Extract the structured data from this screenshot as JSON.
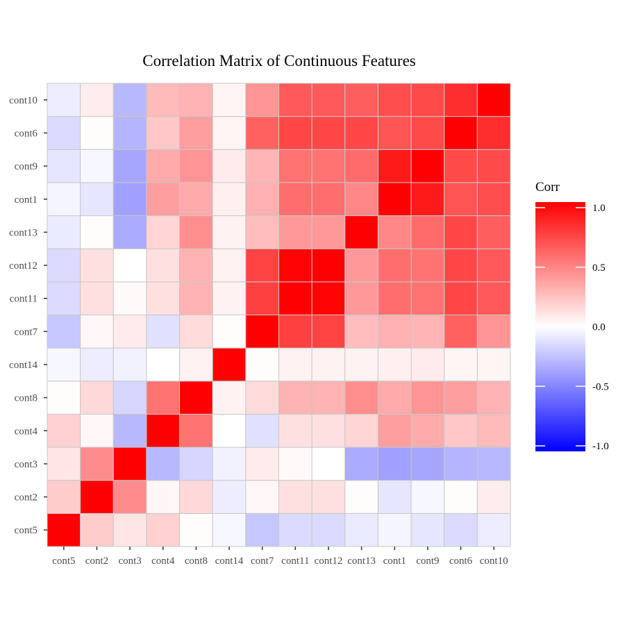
{
  "chart_data": {
    "type": "heatmap",
    "title": "Correlation Matrix of Continuous Features",
    "xlabel": "",
    "ylabel": "",
    "x_categories": [
      "cont5",
      "cont2",
      "cont3",
      "cont4",
      "cont8",
      "cont14",
      "cont7",
      "cont11",
      "cont12",
      "cont13",
      "cont1",
      "cont9",
      "cont6",
      "cont10"
    ],
    "y_categories": [
      "cont5",
      "cont2",
      "cont3",
      "cont4",
      "cont8",
      "cont14",
      "cont7",
      "cont11",
      "cont12",
      "cont13",
      "cont1",
      "cont9",
      "cont6",
      "cont10"
    ],
    "values": [
      [
        1.0,
        0.2,
        0.1,
        0.18,
        0.01,
        -0.03,
        -0.22,
        -0.14,
        -0.14,
        -0.08,
        -0.04,
        -0.1,
        -0.14,
        -0.07
      ],
      [
        0.2,
        1.0,
        0.45,
        0.03,
        0.15,
        -0.07,
        0.03,
        0.12,
        0.12,
        0.01,
        -0.1,
        -0.03,
        0.01,
        0.07
      ],
      [
        0.1,
        0.45,
        1.0,
        -0.28,
        -0.16,
        -0.05,
        0.08,
        0.02,
        0.0,
        -0.33,
        -0.37,
        -0.35,
        -0.29,
        -0.28
      ],
      [
        0.18,
        0.03,
        -0.28,
        1.0,
        0.55,
        0.0,
        -0.12,
        0.12,
        0.12,
        0.17,
        0.38,
        0.33,
        0.22,
        0.27
      ],
      [
        0.01,
        0.15,
        -0.16,
        0.55,
        1.0,
        0.05,
        0.14,
        0.3,
        0.3,
        0.44,
        0.33,
        0.42,
        0.38,
        0.3
      ],
      [
        -0.03,
        -0.07,
        -0.05,
        0.0,
        0.05,
        1.0,
        0.01,
        0.05,
        0.05,
        0.05,
        0.06,
        0.08,
        0.04,
        0.04
      ],
      [
        -0.22,
        0.03,
        0.08,
        -0.12,
        0.14,
        0.01,
        1.0,
        0.75,
        0.74,
        0.26,
        0.31,
        0.29,
        0.62,
        0.42
      ],
      [
        -0.14,
        0.12,
        0.02,
        0.12,
        0.3,
        0.05,
        0.75,
        1.0,
        0.99,
        0.4,
        0.57,
        0.55,
        0.72,
        0.65
      ],
      [
        -0.14,
        0.12,
        0.0,
        0.12,
        0.3,
        0.05,
        0.74,
        0.99,
        1.0,
        0.4,
        0.57,
        0.55,
        0.72,
        0.65
      ],
      [
        -0.08,
        0.01,
        -0.33,
        0.17,
        0.44,
        0.05,
        0.26,
        0.4,
        0.4,
        1.0,
        0.47,
        0.58,
        0.72,
        0.63
      ],
      [
        -0.04,
        -0.1,
        -0.37,
        0.38,
        0.33,
        0.06,
        0.31,
        0.57,
        0.57,
        0.47,
        1.0,
        0.9,
        0.67,
        0.7
      ],
      [
        -0.1,
        -0.03,
        -0.35,
        0.33,
        0.42,
        0.08,
        0.29,
        0.55,
        0.55,
        0.58,
        0.9,
        1.0,
        0.71,
        0.71
      ],
      [
        -0.14,
        0.01,
        -0.29,
        0.22,
        0.38,
        0.04,
        0.62,
        0.72,
        0.72,
        0.72,
        0.67,
        0.71,
        1.0,
        0.82
      ],
      [
        -0.07,
        0.07,
        -0.28,
        0.27,
        0.3,
        0.04,
        0.42,
        0.65,
        0.65,
        0.63,
        0.7,
        0.71,
        0.82,
        1.0
      ]
    ],
    "color_scale": {
      "low": "#0000ff",
      "mid": "#ffffff",
      "high": "#ff0000",
      "limits": [
        -1.0,
        1.0
      ]
    },
    "legend": {
      "title": "Corr",
      "placement": "right",
      "breaks": [
        1.0,
        0.5,
        0.0,
        -0.5,
        -1.0
      ],
      "labels": [
        "1.0",
        "0.5",
        "0.0",
        "-0.5",
        "-1.0"
      ]
    },
    "grid": false,
    "tile_border_color": "#c8c8c8"
  }
}
